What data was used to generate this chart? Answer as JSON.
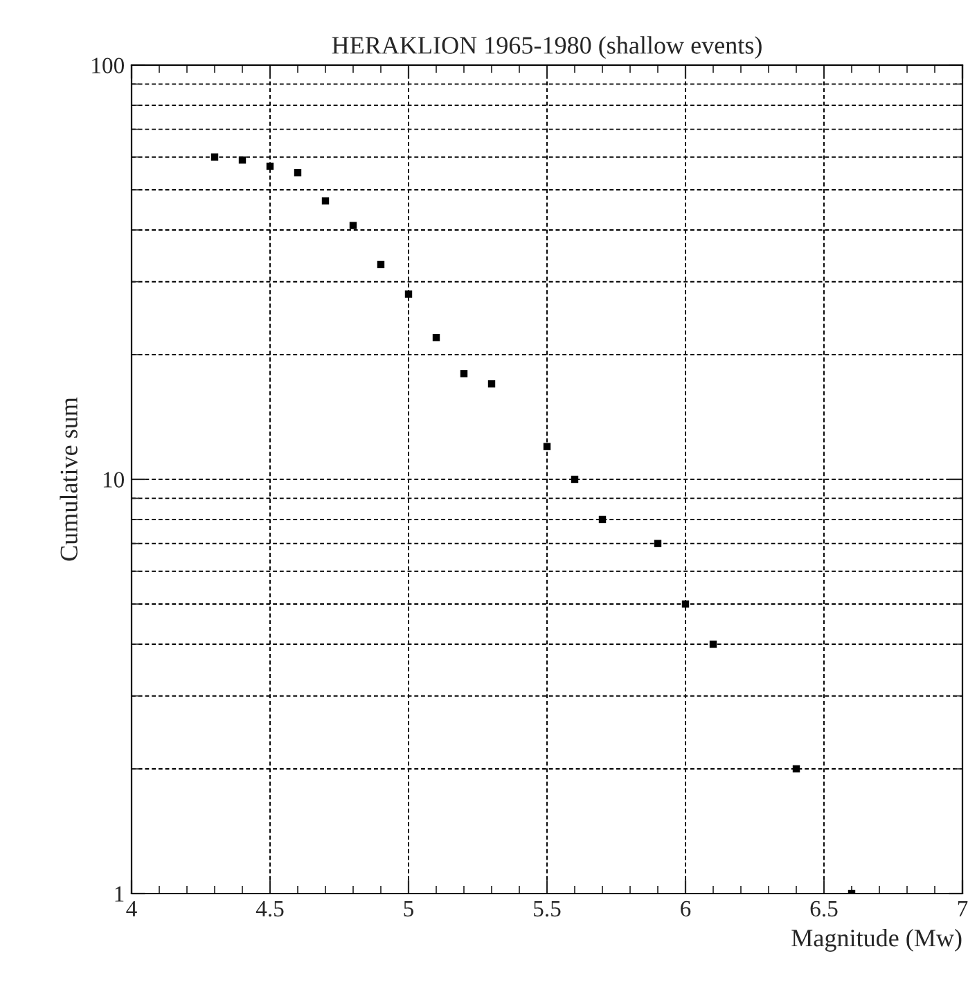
{
  "chart_data": {
    "type": "scatter",
    "title": "HERAKLION 1965-1980 (shallow events)",
    "xlabel": "Magnitude (Mw)",
    "ylabel": "Cumulative sum",
    "x": [
      4.3,
      4.4,
      4.5,
      4.6,
      4.7,
      4.8,
      4.9,
      5.0,
      5.1,
      5.2,
      5.3,
      5.5,
      5.6,
      5.7,
      5.9,
      6.0,
      6.1,
      6.4,
      6.6
    ],
    "series": [
      {
        "color": "#000000",
        "values": [
          60,
          59,
          57,
          55,
          47,
          41,
          33,
          28,
          22,
          18,
          17,
          12,
          10,
          8,
          7,
          5,
          4,
          2,
          1
        ]
      }
    ],
    "log": "y",
    "xlim": [
      4,
      7
    ],
    "ylim": [
      1,
      100
    ],
    "xticks": [
      4,
      4.5,
      5,
      5.5,
      6,
      6.5,
      7
    ],
    "yticks": [
      1,
      10,
      100
    ],
    "grid": true,
    "marker": "square",
    "legend": false
  }
}
